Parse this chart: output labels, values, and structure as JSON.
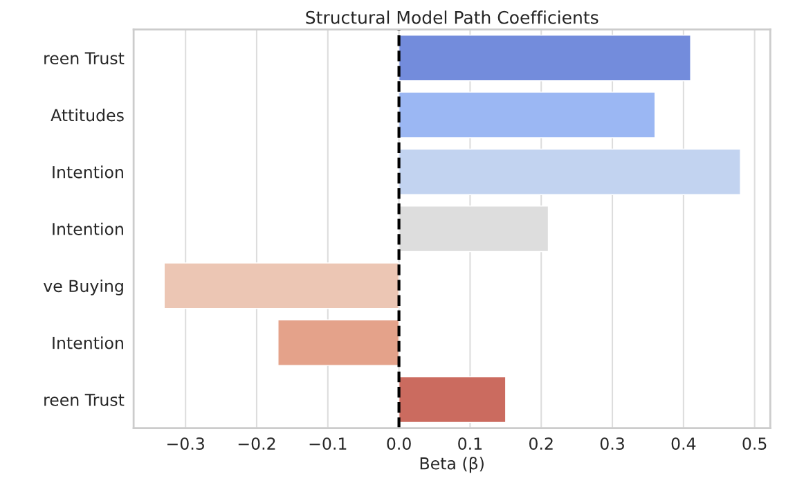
{
  "chart_data": {
    "type": "bar",
    "orientation": "horizontal",
    "title": "Structural Model Path Coefficients",
    "xlabel": "Beta (β)",
    "categories": [
      "reen Trust",
      "Attitudes",
      "Intention",
      "Intention",
      "ve Buying",
      "Intention",
      "reen Trust"
    ],
    "values": [
      0.41,
      0.36,
      0.48,
      0.21,
      -0.33,
      -0.17,
      0.15
    ],
    "colors": [
      "#738cdc",
      "#9bb7f3",
      "#c2d3f0",
      "#dddddd",
      "#ecc6b4",
      "#e4a28a",
      "#cb6b5f"
    ],
    "xlim": [
      -0.373,
      0.522
    ],
    "xticks": [
      {
        "value": -0.3,
        "label": "−0.3"
      },
      {
        "value": -0.2,
        "label": "−0.2"
      },
      {
        "value": -0.1,
        "label": "−0.1"
      },
      {
        "value": 0,
        "label": "0.0"
      },
      0.1,
      0.2,
      0.3,
      0.4,
      0.5
    ],
    "grid": "x",
    "ref_lines": [
      {
        "axis": "x",
        "value": 0,
        "color": "#000000",
        "line_style": "dashed"
      }
    ]
  }
}
